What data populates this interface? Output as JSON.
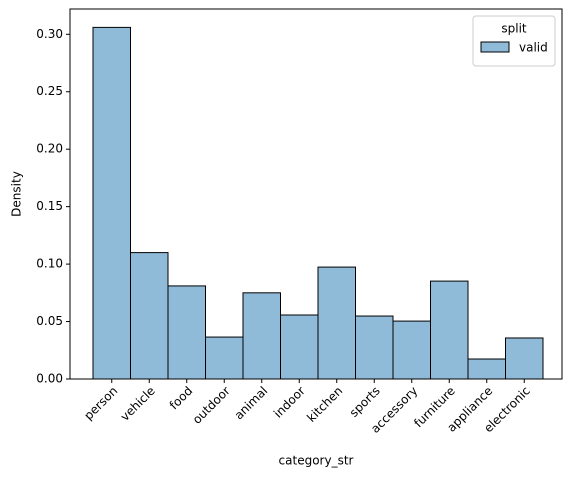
{
  "chart_data": {
    "type": "bar",
    "xlabel": "category_str",
    "ylabel": "Density",
    "categories": [
      "person",
      "vehicle",
      "food",
      "outdoor",
      "animal",
      "indoor",
      "kitchen",
      "sports",
      "accessory",
      "furniture",
      "appliance",
      "electronic"
    ],
    "series": [
      {
        "name": "valid",
        "color": "#8fbbd9",
        "values": [
          0.306,
          0.11,
          0.081,
          0.0365,
          0.075,
          0.0557,
          0.0974,
          0.0548,
          0.0504,
          0.0852,
          0.0174,
          0.0357
        ]
      }
    ],
    "legend_title": "split",
    "legend": "upper right",
    "ylim": [
      0,
      0.322
    ],
    "yticks": [
      {
        "value": 0,
        "label": "0.00"
      },
      {
        "value": 0.05,
        "label": "0.05"
      },
      {
        "value": 0.1,
        "label": "0.10"
      },
      {
        "value": 0.15,
        "label": "0.15"
      },
      {
        "value": 0.2,
        "label": "0.20"
      },
      {
        "value": 0.25,
        "label": "0.25"
      },
      {
        "value": 0.3,
        "label": "0.30"
      }
    ]
  }
}
